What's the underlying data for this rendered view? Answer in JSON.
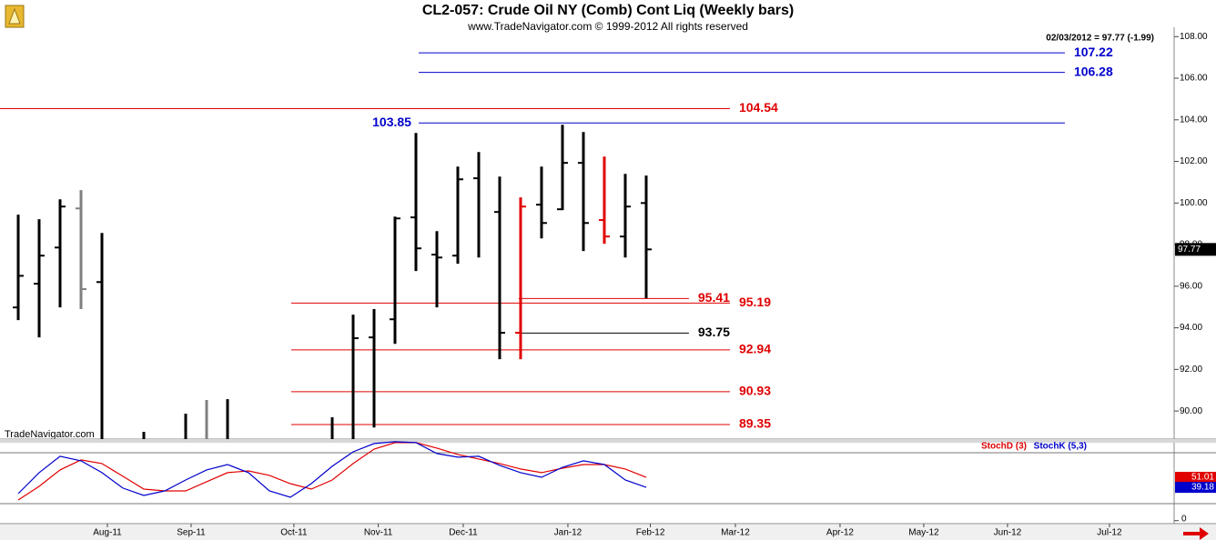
{
  "header": {
    "title": "CL2-057:  Crude Oil NY (Comb) Cont Liq  (Weekly bars)",
    "subtitle": "www.TradeNavigator.com © 1999-2012 All rights reserved",
    "last_quote": "02/03/2012 = 97.77 (-1.99)",
    "watermark": "TradeNavigator.com"
  },
  "chart_data": [
    {
      "type": "ohlc",
      "x": [
        0,
        1,
        2,
        3,
        4,
        5,
        6,
        7,
        8,
        9,
        10,
        11,
        12,
        13,
        14,
        15,
        16,
        17,
        18,
        19,
        20,
        21,
        22,
        23,
        24,
        25,
        26,
        27,
        28,
        29,
        30
      ],
      "open": [
        94.98,
        96.12,
        97.86,
        99.74,
        96.2,
        null,
        null,
        null,
        null,
        null,
        null,
        null,
        null,
        null,
        null,
        null,
        null,
        93.54,
        94.41,
        99.31,
        97.52,
        97.47,
        101.19,
        99.57,
        93.76,
        99.92,
        99.7,
        101.93,
        99.18,
        98.39,
        100.0
      ],
      "high": [
        99.44,
        99.22,
        100.18,
        100.62,
        98.56,
        null,
        89.0,
        null,
        89.87,
        90.53,
        90.57,
        null,
        null,
        null,
        null,
        89.7,
        94.63,
        94.9,
        99.35,
        103.37,
        98.65,
        101.75,
        102.45,
        101.27,
        100.27,
        101.75,
        103.76,
        103.41,
        102.23,
        101.4,
        101.32
      ],
      "low": [
        94.37,
        93.54,
        94.98,
        94.9,
        null,
        null,
        null,
        null,
        null,
        null,
        null,
        null,
        null,
        null,
        null,
        null,
        null,
        89.21,
        93.23,
        96.73,
        94.98,
        97.08,
        97.38,
        92.49,
        92.49,
        98.3,
        99.66,
        97.69,
        98.04,
        97.38,
        95.42
      ],
      "close": [
        96.5,
        97.47,
        99.83,
        95.86,
        null,
        null,
        null,
        null,
        null,
        null,
        null,
        null,
        null,
        null,
        null,
        null,
        93.5,
        null,
        99.26,
        97.82,
        97.38,
        101.14,
        null,
        93.76,
        99.83,
        99.04,
        101.93,
        99.04,
        98.39,
        99.83,
        97.77
      ],
      "bar_colors": [
        "#000000",
        "#000000",
        "#000000",
        "#808080",
        "#000000",
        "#000000",
        "#000000",
        "#000000",
        "#000000",
        "#808080",
        "#000000",
        "#000000",
        "#000000",
        "#000000",
        "#000000",
        "#000000",
        "#000000",
        "#000000",
        "#000000",
        "#000000",
        "#000000",
        "#000000",
        "#000000",
        "#000000",
        "#e00000",
        "#000000",
        "#000000",
        "#000000",
        "#e00000",
        "#000000",
        "#000000"
      ],
      "xlim": [
        -0.87,
        55.22
      ],
      "xticks": [
        {
          "value": 4.26,
          "label": "Aug-11"
        },
        {
          "value": 8.26,
          "label": "Sep-11"
        },
        {
          "value": 13.17,
          "label": "Oct-11"
        },
        {
          "value": 17.2,
          "label": "Nov-11"
        },
        {
          "value": 21.26,
          "label": "Dec-11"
        },
        {
          "value": 26.26,
          "label": "Jan-12"
        },
        {
          "value": 30.2,
          "label": "Feb-12"
        },
        {
          "value": 34.26,
          "label": "Mar-12"
        },
        {
          "value": 39.26,
          "label": "Apr-12"
        },
        {
          "value": 43.26,
          "label": "May-12"
        },
        {
          "value": 47.26,
          "label": "Jun-12"
        },
        {
          "value": 52.13,
          "label": "Jul-12"
        }
      ],
      "ylim": [
        88.65,
        108.45
      ],
      "yticks": [
        {
          "value": 90,
          "label": "90.00"
        },
        {
          "value": 92,
          "label": "92.00"
        },
        {
          "value": 94,
          "label": "94.00"
        },
        {
          "value": 96,
          "label": "96.00"
        },
        {
          "value": 98,
          "label": "98.00"
        },
        {
          "value": 100,
          "label": "100.00"
        },
        {
          "value": 102,
          "label": "102.00"
        },
        {
          "value": 104,
          "label": "104.00"
        },
        {
          "value": 106,
          "label": "106.00"
        },
        {
          "value": 108,
          "label": "108.00"
        }
      ],
      "levels": [
        {
          "value": 107.22,
          "color": "#0000cc",
          "x_from": 19.13,
          "x_to": 50.0,
          "label_side": "right"
        },
        {
          "value": 106.28,
          "color": "#0000cc",
          "x_from": 19.13,
          "x_to": 50.0,
          "label_side": "right"
        },
        {
          "value": 104.54,
          "color": "#e00000",
          "x_from": -0.87,
          "x_to": 34.0,
          "label_side": "right"
        },
        {
          "value": 103.85,
          "color": "#0000cc",
          "x_from": 19.13,
          "x_to": 50.0,
          "label_side": "left"
        },
        {
          "value": 95.41,
          "color": "#e00000",
          "x_from": 23.91,
          "x_to": 32.04,
          "label_side": "right"
        },
        {
          "value": 95.19,
          "color": "#e00000",
          "x_from": 13.04,
          "x_to": 34.0,
          "label_side": "right"
        },
        {
          "value": 93.75,
          "color": "#000000",
          "x_from": 23.91,
          "x_to": 32.04,
          "label_side": "right"
        },
        {
          "value": 92.94,
          "color": "#e00000",
          "x_from": 13.04,
          "x_to": 34.0,
          "label_side": "right"
        },
        {
          "value": 90.93,
          "color": "#e00000",
          "x_from": 13.04,
          "x_to": 34.0,
          "label_side": "right"
        },
        {
          "value": 89.35,
          "color": "#e00000",
          "x_from": 13.04,
          "x_to": 34.0,
          "label_side": "right"
        }
      ]
    },
    {
      "type": "line",
      "x": [
        0,
        1,
        2,
        3,
        4,
        5,
        6,
        7,
        8,
        9,
        10,
        11,
        12,
        13,
        14,
        15,
        16,
        17,
        18,
        19,
        20,
        21,
        22,
        23,
        24,
        25,
        26,
        27,
        28,
        29,
        30
      ],
      "xlim": [
        -0.87,
        55.22
      ],
      "ylim": [
        0,
        100
      ],
      "yticks": [
        0
      ],
      "levels": [
        20,
        80
      ],
      "series": [
        {
          "name": "StochD (3)",
          "color": "#e00000",
          "values": [
            24.3,
            40.4,
            59.7,
            71.5,
            67.2,
            52.2,
            37.2,
            35.0,
            35.0,
            45.8,
            56.5,
            58.6,
            53.3,
            43.6,
            37.2,
            47.9,
            67.2,
            84.3,
            91.9,
            91.9,
            85.4,
            77.9,
            72.6,
            67.2,
            60.8,
            56.5,
            61.8,
            66.1,
            66.1,
            60.8,
            51.01
          ]
        },
        {
          "name": "StochK (5,3)",
          "color": "#0000cc",
          "values": [
            31.8,
            56.5,
            75.8,
            70.4,
            56.5,
            38.3,
            29.7,
            35.0,
            47.9,
            59.7,
            66.1,
            56.5,
            35.0,
            27.5,
            43.6,
            64.0,
            81.1,
            90.8,
            92.9,
            91.9,
            79.0,
            74.7,
            75.8,
            65.1,
            56.5,
            51.1,
            62.9,
            70.4,
            66.1,
            47.9,
            39.18
          ]
        }
      ]
    }
  ]
}
